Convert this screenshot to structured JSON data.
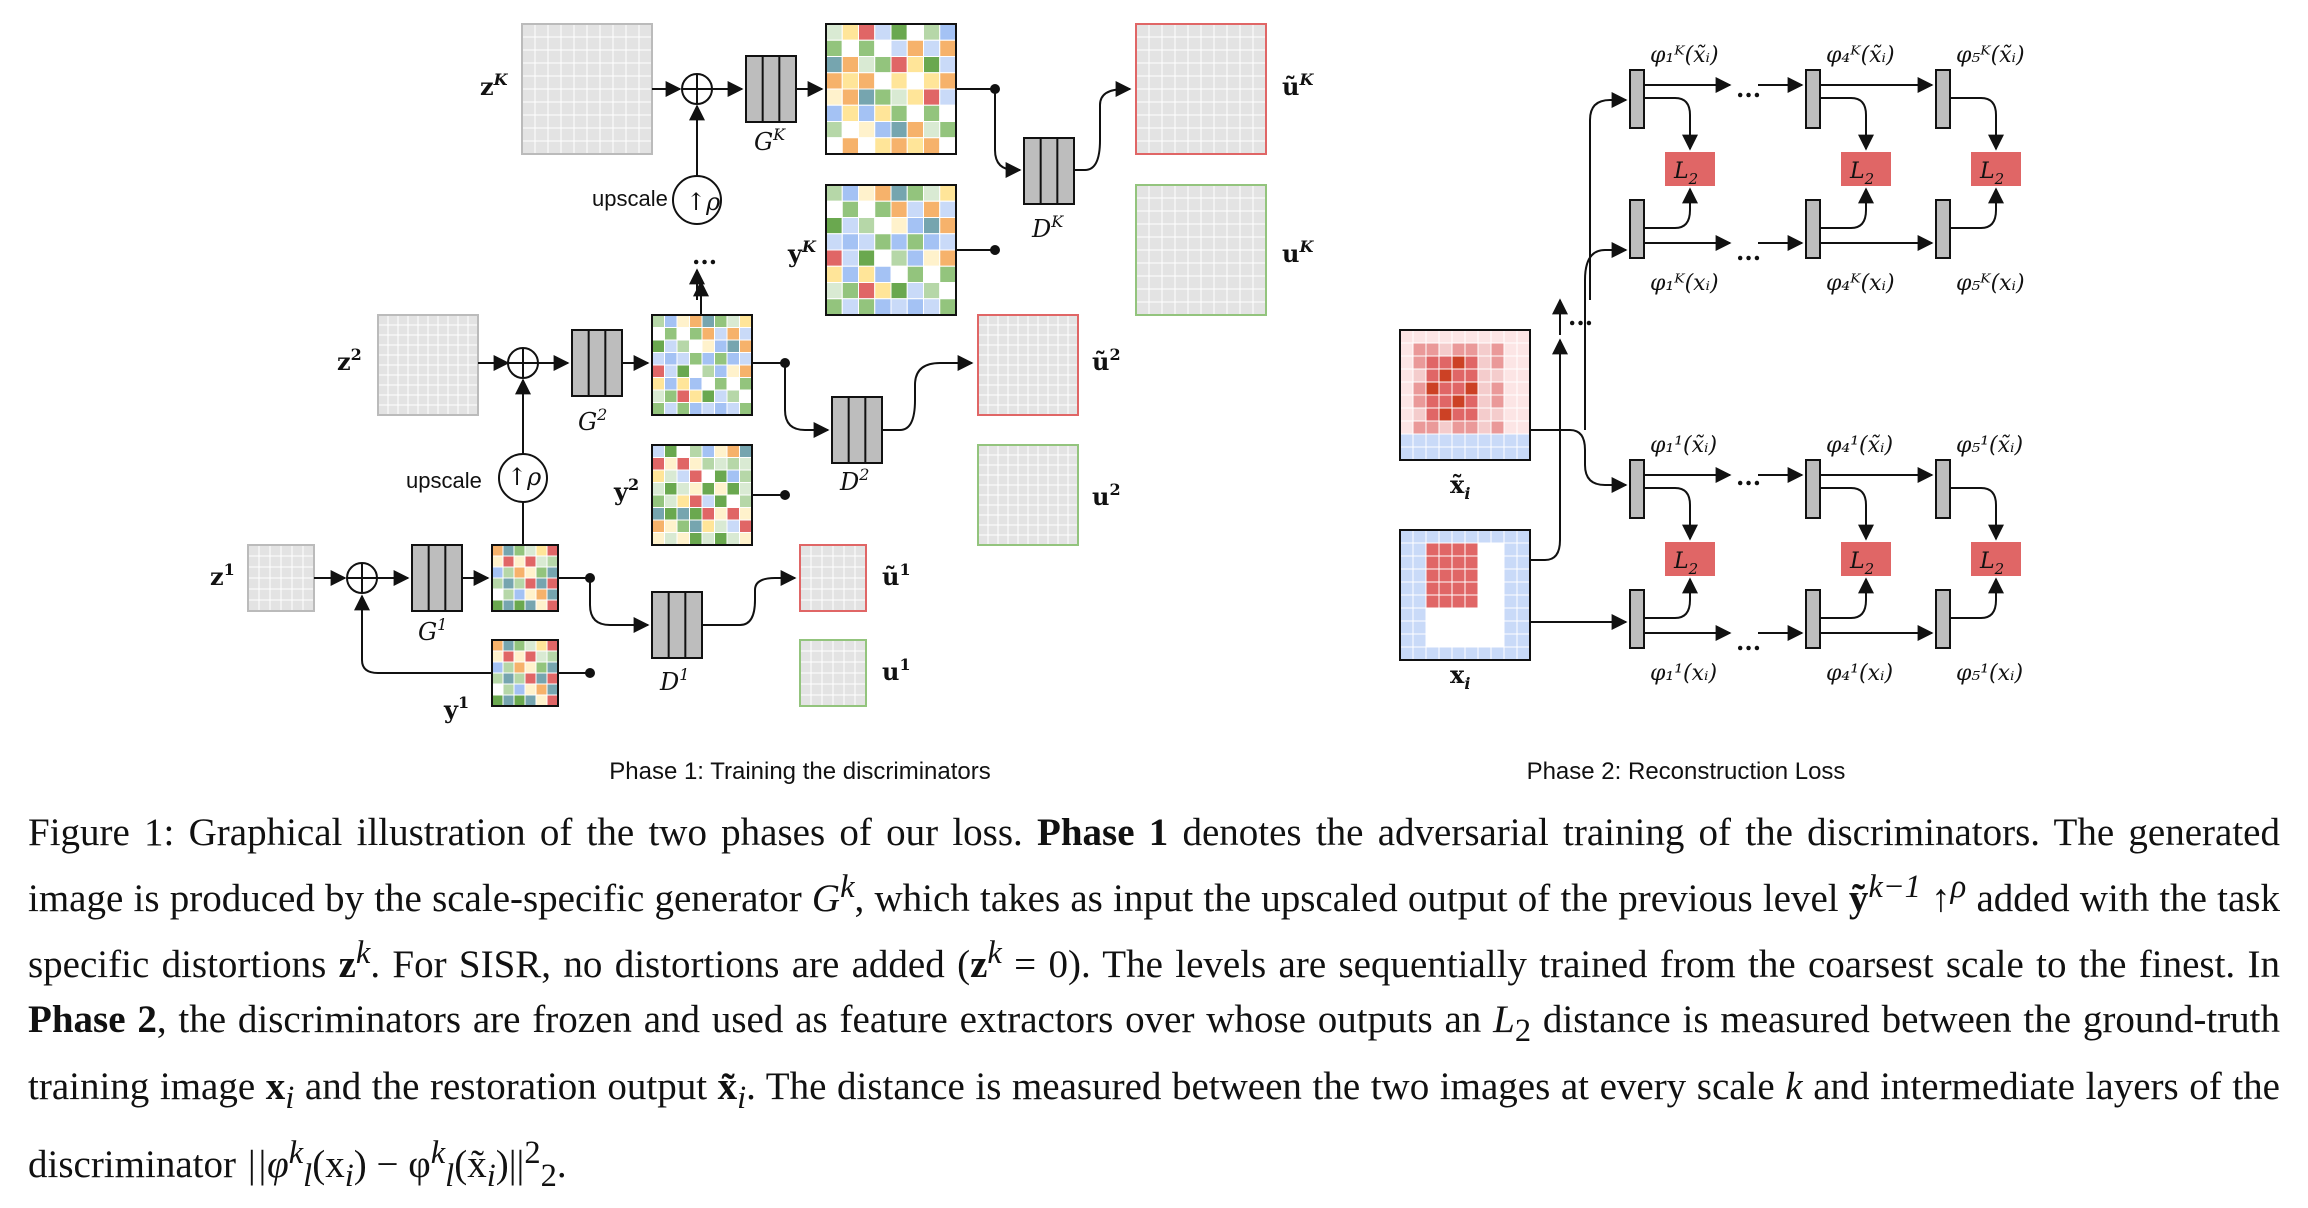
{
  "phase1": {
    "upscale_label": "upscale",
    "upscale_symbol": "↑ρ",
    "ellipsis": "...",
    "caption": "Phase 1: Training the discriminators",
    "levels": [
      {
        "z": "z",
        "z_sup": "1",
        "y": "y",
        "y_sup": "1",
        "g": "G",
        "g_sup": "1",
        "d": "D",
        "d_sup": "1",
        "ut": "ũ",
        "ut_sup": "1",
        "u": "u",
        "u_sup": "1"
      },
      {
        "z": "z",
        "z_sup": "2",
        "y": "y",
        "y_sup": "2",
        "g": "G",
        "g_sup": "2",
        "d": "D",
        "d_sup": "2",
        "ut": "ũ",
        "ut_sup": "2",
        "u": "u",
        "u_sup": "2"
      },
      {
        "z": "z",
        "z_sup": "K",
        "y": "y",
        "y_sup": "K",
        "g": "G",
        "g_sup": "K",
        "d": "D",
        "d_sup": "K",
        "ut": "ũ",
        "ut_sup": "K",
        "u": "u",
        "u_sup": "K"
      }
    ]
  },
  "phase2": {
    "caption": "Phase 2: Reconstruction Loss",
    "ellipsis": "...",
    "loss_label": "L",
    "loss_sub": "2",
    "input_restored": "x̃",
    "input_restored_sub": "i",
    "input_gt": "x",
    "input_gt_sub": "i",
    "top_row": {
      "f1_up": "φ₁ᴷ(x̃ᵢ)",
      "f4_up": "φ₄ᴷ(x̃ᵢ)",
      "f5_up": "φ₅ᴷ(x̃ᵢ)",
      "f1_dn": "φ₁ᴷ(xᵢ)",
      "f4_dn": "φ₄ᴷ(xᵢ)",
      "f5_dn": "φ₅ᴷ(xᵢ)"
    },
    "bot_row": {
      "f1_up": "φ₁¹(x̃ᵢ)",
      "f4_up": "φ₄¹(x̃ᵢ)",
      "f5_up": "φ₅¹(x̃ᵢ)",
      "f1_dn": "φ₁¹(xᵢ)",
      "f4_dn": "φ₄¹(xᵢ)",
      "f5_dn": "φ₅¹(xᵢ)"
    }
  },
  "caption": {
    "p1": "Figure 1: Graphical illustration of the two phases of our loss. ",
    "p2": "Phase 1",
    "p3": " denotes the adversarial training of the discriminators. The generated image is produced by the scale-specific generator ",
    "p4": "G",
    "p4sup": "k",
    "p5": ", which takes as input the upscaled output of the previous level ",
    "p6": "ỹ",
    "p6sup": "k−1",
    "p7": " ↑",
    "p7sup": "ρ",
    "p8": " added with the task specific distortions ",
    "p9": "z",
    "p9sup": "k",
    "p10": ".  For SISR, no distortions are added (",
    "p11": "z",
    "p11sup": "k",
    "p12": " = 0).  The levels are sequentially trained from the coarsest scale to the finest.  In ",
    "p13": "Phase 2",
    "p14": ", the discriminators are frozen and used as feature extractors over whose outputs an ",
    "p15": "L",
    "p15sub": "2",
    "p16": " distance is measured between the ground-truth training image ",
    "p17": "x",
    "p17sub": "i",
    "p18": " and the restoration output ",
    "p19": "x̃",
    "p19sub": "i",
    "p20": ".  The distance is measured between the two images at every scale ",
    "p21": "k",
    "p22": " and intermediate layers of the discriminator ",
    "p23": "||φ",
    "p23sup": "k",
    "p23sub": "l",
    "p24": "(x",
    "p24sub": "i",
    "p25": ") − φ",
    "p25sup": "k",
    "p25sub": "l",
    "p26": "(x̃",
    "p26sub": "i",
    "p27": ")||",
    "p27sup": "2",
    "p27sub": "2",
    "p28": "."
  },
  "colors": {
    "gray_cell": "#e3e3e3",
    "red_border": "#e06666",
    "green_border": "#93c47d",
    "loss_fill": "#e06666",
    "block_fill": "#bdbdbd"
  }
}
